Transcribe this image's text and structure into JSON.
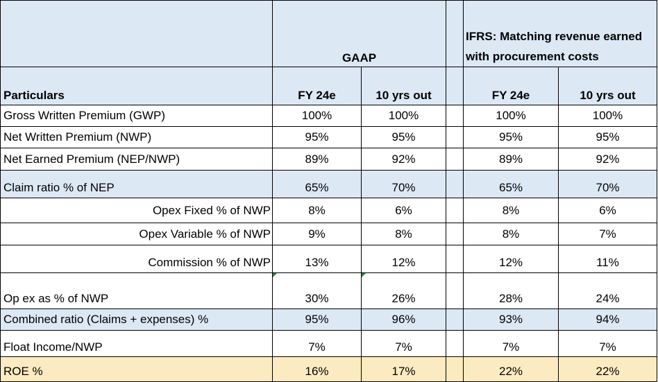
{
  "header": {
    "gaap_label": "GAAP",
    "ifrs_label": "IFRS: Matching revenue earned with procurement costs"
  },
  "columns": {
    "particulars": "Particulars",
    "gaap_fy24": "FY 24e",
    "gaap_10yrs": "10 yrs out",
    "ifrs_fy24": "FY 24e",
    "ifrs_10yrs": "10 yrs out"
  },
  "rows": [
    {
      "label": "Gross Written Premium (GWP)",
      "g1": "100%",
      "g2": "100%",
      "i1": "100%",
      "i2": "100%"
    },
    {
      "label": "Net Written Premium (NWP)",
      "g1": "95%",
      "g2": "95%",
      "i1": "95%",
      "i2": "95%"
    },
    {
      "label": "Net Earned Premium (NEP/NWP)",
      "g1": "89%",
      "g2": "92%",
      "i1": "89%",
      "i2": "92%"
    },
    {
      "label": "Claim ratio % of NEP",
      "g1": "65%",
      "g2": "70%",
      "i1": "65%",
      "i2": "70%"
    },
    {
      "label": "Opex Fixed % of NWP",
      "g1": "8%",
      "g2": "6%",
      "i1": "8%",
      "i2": "6%"
    },
    {
      "label": "Opex Variable % of NWP",
      "g1": "9%",
      "g2": "8%",
      "i1": "8%",
      "i2": "7%"
    },
    {
      "label": "Commission % of NWP",
      "g1": "13%",
      "g2": "12%",
      "i1": "12%",
      "i2": "11%"
    },
    {
      "label": "Op ex as % of NWP",
      "g1": "30%",
      "g2": "26%",
      "i1": "28%",
      "i2": "24%"
    },
    {
      "label": "Combined ratio (Claims + expenses) %",
      "g1": "95%",
      "g2": "96%",
      "i1": "93%",
      "i2": "94%"
    },
    {
      "label": "Float Income/NWP",
      "g1": "7%",
      "g2": "7%",
      "i1": "7%",
      "i2": "7%"
    },
    {
      "label": "ROE %",
      "g1": "16%",
      "g2": "17%",
      "i1": "22%",
      "i2": "22%"
    }
  ],
  "colors": {
    "header_blue": "#dde8f5",
    "roe_tan": "#fcebc0",
    "marker_green": "#1e8a3a"
  }
}
